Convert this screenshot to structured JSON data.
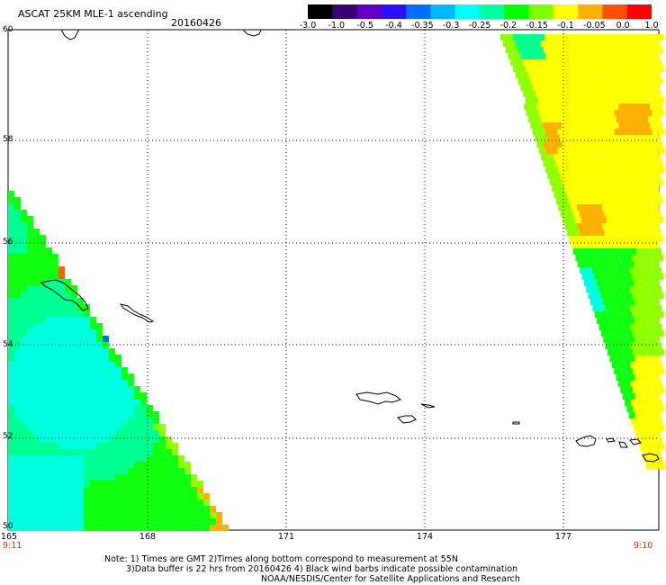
{
  "header": {
    "title": "ASCAT 25KM MLE-1 ascending",
    "date": "20160426"
  },
  "colorbar": {
    "labels": [
      "-3.0",
      "-1.0",
      "-0.5",
      "-0.4",
      "-0.35",
      "-0.3",
      "-0.25",
      "-0.2",
      "-0.15",
      "-0.1",
      "-0.05",
      "0.0",
      "1.0"
    ],
    "colors": [
      "#000000",
      "#3a0070",
      "#6000c0",
      "#2a10ff",
      "#0070ff",
      "#00b8ff",
      "#00ffff",
      "#00ffa0",
      "#00ff00",
      "#80ff00",
      "#ffff00",
      "#ffb000",
      "#ff5000",
      "#ff0000"
    ]
  },
  "map": {
    "lat_labels": [
      "60",
      "58",
      "56",
      "54",
      "52",
      "50"
    ],
    "lon_labels": [
      "165",
      "168",
      "171",
      "174",
      "177"
    ],
    "time_left": "9:11",
    "time_right": "9:10",
    "field_colors": {
      "cyan": "#00ffe0",
      "aqua_green": "#00ff90",
      "green": "#10ff10",
      "lime": "#90ff00",
      "yellow": "#ffff00",
      "orange": "#ffb000",
      "red_orange": "#ff6000",
      "blue": "#0070ff"
    }
  },
  "footer": {
    "line1": "Note: 1) Times are GMT 2)Times along bottom correspond to measurement at 55N",
    "line2": "3)Data buffer is 22 hrs from 20160426 4) Black wind barbs indicate possible contamination",
    "line3": "NOAA/NESDIS/Center for Satellite Applications and Research"
  }
}
